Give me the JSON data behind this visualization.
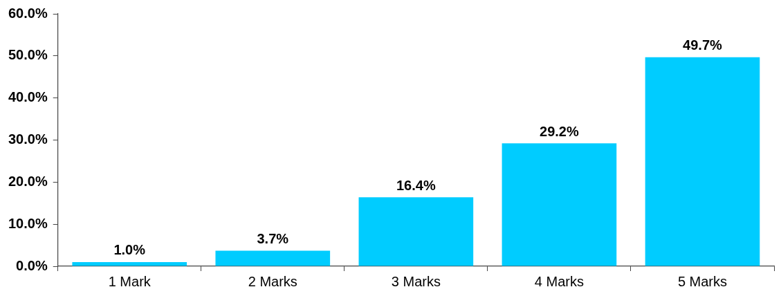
{
  "chart_data": {
    "type": "bar",
    "categories": [
      "1 Mark",
      "2 Marks",
      "3 Marks",
      "4 Marks",
      "5 Marks"
    ],
    "values": [
      1.0,
      3.7,
      16.4,
      29.2,
      49.7
    ],
    "value_labels": [
      "1.0%",
      "3.7%",
      "16.4%",
      "29.2%",
      "49.7%"
    ],
    "color": "#00ccff",
    "ylim": [
      0,
      60
    ],
    "yticks": [
      {
        "value": 0,
        "label": "0.0%"
      },
      {
        "value": 10,
        "label": "10.0%"
      },
      {
        "value": 20,
        "label": "20.0%"
      },
      {
        "value": 30,
        "label": "30.0%"
      },
      {
        "value": 40,
        "label": "40.0%"
      },
      {
        "value": 50,
        "label": "50.0%"
      },
      {
        "value": 60,
        "label": "60.0%"
      }
    ],
    "grid": false,
    "legend": false
  }
}
